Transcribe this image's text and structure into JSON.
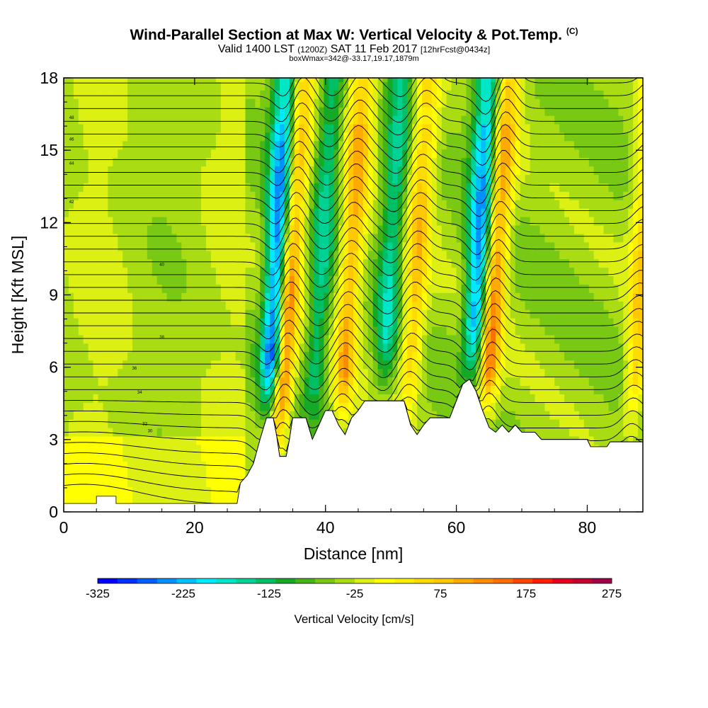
{
  "chart_data": {
    "type": "heatmap",
    "title": "Wind-Parallel Section at Max W: Vertical Velocity & Pot.Temp.",
    "title_note": "(C)",
    "subtitle_main": "Valid 1400 LST",
    "subtitle_utc": "(1200Z)",
    "subtitle_date": "SAT 11 Feb 2017",
    "subtitle_fcst": "[12hrFcst@0434z]",
    "subtitle2": "boxWmax=342@-33.17,19.17,1879m",
    "xlabel": "Distance [nm]",
    "ylabel": "Height [Kft MSL]",
    "xlim": [
      0,
      88.5
    ],
    "ylim": [
      0,
      18
    ],
    "x_ticks": [
      "0",
      "20",
      "40",
      "60",
      "80"
    ],
    "x_tick_values": [
      0,
      20,
      40,
      60,
      80
    ],
    "y_ticks": [
      "0",
      "3",
      "6",
      "9",
      "12",
      "15",
      "18"
    ],
    "y_tick_values": [
      0,
      3,
      6,
      9,
      12,
      15,
      18
    ],
    "colorbar": {
      "label": "Vertical Velocity [cm/s]",
      "min": -325,
      "max": 275,
      "step": 25,
      "tick_labels": [
        "-325",
        "-225",
        "-125",
        "-25",
        "75",
        "175",
        "275"
      ],
      "tick_values": [
        -325,
        -225,
        -125,
        -25,
        75,
        175,
        275
      ],
      "colors": [
        "#0000ff",
        "#0030ff",
        "#0060ff",
        "#0090ff",
        "#00c0ff",
        "#00eaff",
        "#00e6c8",
        "#00d296",
        "#00be64",
        "#14aa28",
        "#46b414",
        "#78c814",
        "#aadc14",
        "#dcf014",
        "#ffff00",
        "#fff000",
        "#ffdc00",
        "#ffc800",
        "#ffaa00",
        "#ff8c00",
        "#ff6e00",
        "#ff4600",
        "#ff1e00",
        "#e6001e",
        "#c80032",
        "#a00046"
      ]
    },
    "features": {
      "updrafts": [
        {
          "x": 33.5,
          "w": 230
        },
        {
          "x": 43.0,
          "w": 150
        },
        {
          "x": 53.0,
          "w": 130
        },
        {
          "x": 65.0,
          "w": 190
        },
        {
          "x": 87.5,
          "w": 120
        }
      ],
      "downdrafts": [
        {
          "x": 31.8,
          "w": -290
        },
        {
          "x": 38.5,
          "w": -110
        },
        {
          "x": 49.0,
          "w": -120
        },
        {
          "x": 62.5,
          "w": -230
        }
      ]
    },
    "contour_labels": [
      "48",
      "46",
      "44",
      "42",
      "40",
      "38",
      "36",
      "34",
      "32",
      "30"
    ]
  }
}
